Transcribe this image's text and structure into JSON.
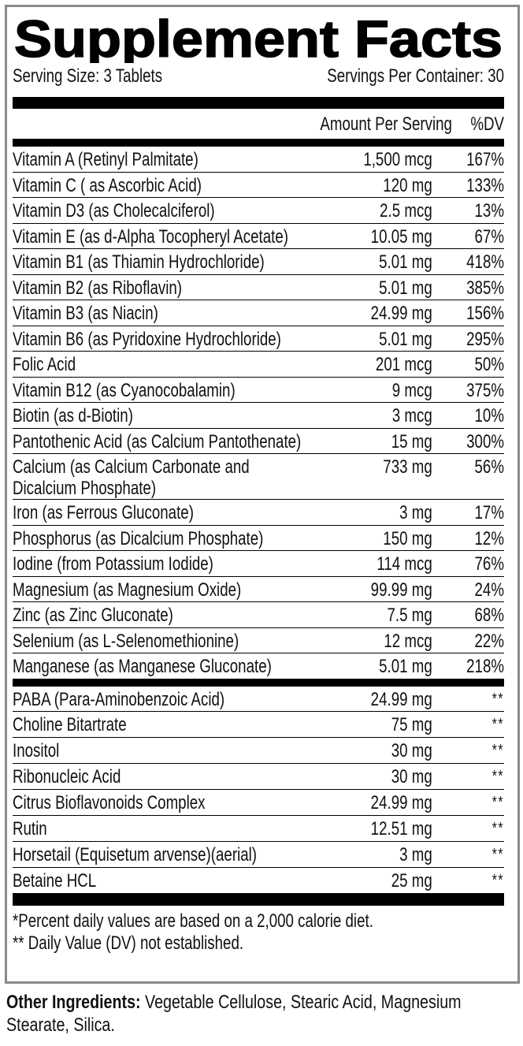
{
  "title": "Supplement Facts",
  "serving_size": "Serving Size: 3 Tablets",
  "servings_per_container": "Servings Per Container: 30",
  "header": {
    "amount": "Amount Per Serving",
    "dv": "%DV"
  },
  "nutrients": [
    {
      "name": "Vitamin A (Retinyl Palmitate)",
      "amount": "1,500 mcg",
      "dv": "167%"
    },
    {
      "name": "Vitamin C ( as Ascorbic Acid)",
      "amount": "120 mg",
      "dv": "133%"
    },
    {
      "name": "Vitamin D3 (as Cholecalciferol)",
      "amount": "2.5 mcg",
      "dv": "13%"
    },
    {
      "name": "Vitamin E (as d-Alpha Tocopheryl Acetate)",
      "amount": "10.05 mg",
      "dv": "67%"
    },
    {
      "name": "Vitamin B1 (as Thiamin Hydrochloride)",
      "amount": "5.01 mg",
      "dv": "418%"
    },
    {
      "name": "Vitamin B2 (as Riboflavin)",
      "amount": "5.01 mg",
      "dv": "385%"
    },
    {
      "name": "Vitamin B3 (as Niacin)",
      "amount": "24.99 mg",
      "dv": "156%"
    },
    {
      "name": "Vitamin B6 (as Pyridoxine Hydrochloride)",
      "amount": "5.01 mg",
      "dv": "295%"
    },
    {
      "name": "Folic Acid",
      "amount": "201 mcg",
      "dv": "50%"
    },
    {
      "name": "Vitamin B12 (as Cyanocobalamin)",
      "amount": "9 mcg",
      "dv": "375%"
    },
    {
      "name": "Biotin (as d-Biotin)",
      "amount": "3 mcg",
      "dv": "10%"
    },
    {
      "name": "Pantothenic Acid (as Calcium Pantothenate)",
      "amount": "15 mg",
      "dv": "300%"
    },
    {
      "name": "Calcium (as Calcium Carbonate and",
      "name2": "Dicalcium Phosphate)",
      "amount": "733 mg",
      "dv": "56%"
    },
    {
      "name": "Iron (as Ferrous Gluconate)",
      "amount": "3 mg",
      "dv": "17%"
    },
    {
      "name": "Phosphorus (as Dicalcium Phosphate)",
      "amount": "150 mg",
      "dv": "12%"
    },
    {
      "name": "Iodine (from Potassium Iodide)",
      "amount": "114 mcg",
      "dv": "76%"
    },
    {
      "name": "Magnesium (as Magnesium Oxide)",
      "amount": "99.99 mg",
      "dv": "24%"
    },
    {
      "name": "Zinc (as Zinc Gluconate)",
      "amount": "7.5 mg",
      "dv": "68%"
    },
    {
      "name": "Selenium (as L-Selenomethionine)",
      "amount": "12 mcg",
      "dv": "22%"
    },
    {
      "name": "Manganese (as Manganese Gluconate)",
      "amount": "5.01 mg",
      "dv": "218%"
    }
  ],
  "other_nutrients": [
    {
      "name": "PABA (Para-Aminobenzoic Acid)",
      "amount": "24.99 mg",
      "dv": "**"
    },
    {
      "name": "Choline Bitartrate",
      "amount": "75 mg",
      "dv": "**"
    },
    {
      "name": "Inositol",
      "amount": "30 mg",
      "dv": "**"
    },
    {
      "name": "Ribonucleic Acid",
      "amount": "30 mg",
      "dv": "**"
    },
    {
      "name": "Citrus Bioflavonoids Complex",
      "amount": "24.99 mg",
      "dv": "**"
    },
    {
      "name": "Rutin",
      "amount": "12.51 mg",
      "dv": "**"
    },
    {
      "name": "Horsetail (Equisetum arvense)(aerial)",
      "amount": "3 mg",
      "dv": "**"
    },
    {
      "name": "Betaine HCL",
      "amount": "25 mg",
      "dv": "**"
    }
  ],
  "footnotes": [
    "*Percent daily values are based on a 2,000 calorie diet.",
    "** Daily Value (DV) not established."
  ],
  "other_ingredients": {
    "label": "Other Ingredients:",
    "text": " Vegetable Cellulose, Stearic Acid, Magnesium Stearate, Silica."
  }
}
